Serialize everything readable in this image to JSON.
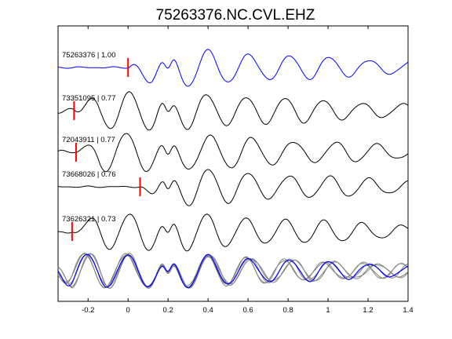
{
  "chart_data": {
    "type": "line",
    "title": "75263376.NC.CVL.EHZ",
    "xlabel": "",
    "ylabel": "",
    "xlim": [
      -0.35,
      1.4
    ],
    "grid": false,
    "x_ticks": [
      -0.2,
      0,
      0.2,
      0.4,
      0.6,
      0.8,
      1,
      1.2,
      1.4
    ],
    "x_tick_labels": [
      "-0.2",
      "0",
      "0.2",
      "0.4",
      "0.6",
      "0.8",
      "1",
      "1.2",
      "1.4"
    ],
    "traces": [
      {
        "label": "75263376 | 1.00",
        "color": "#0000ff",
        "pick_time": 0.0
      },
      {
        "label": "73351095 | 0.77",
        "color": "#000000",
        "pick_time": -0.27
      },
      {
        "label": "72043911 | 0.77",
        "color": "#000000",
        "pick_time": -0.26
      },
      {
        "label": "73668026 | 0.76",
        "color": "#000000",
        "pick_time": 0.06
      },
      {
        "label": "73626321 | 0.73",
        "color": "#000000",
        "pick_time": -0.28
      }
    ],
    "stack": {
      "overlay_color": "#808080",
      "reference_color": "#0000ff"
    },
    "pick_color": "#ff0000"
  }
}
